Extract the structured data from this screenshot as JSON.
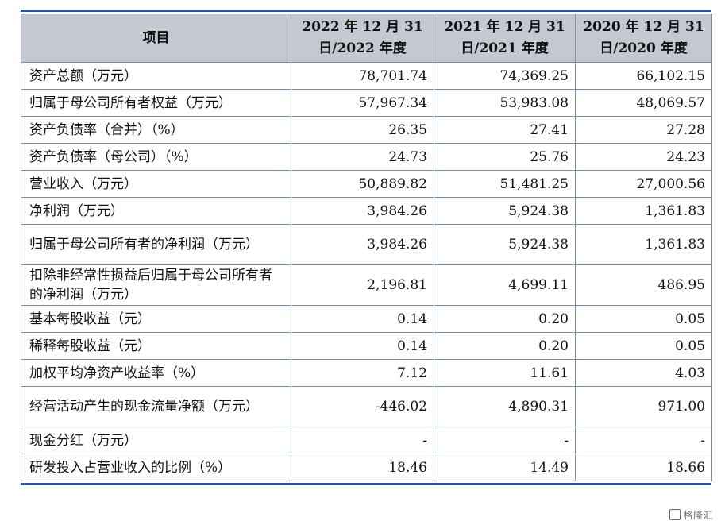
{
  "table": {
    "headers": [
      "项目",
      "2022 年 12 月 31 日/2022 年度",
      "2021 年 12 月 31 日/2021 年度",
      "2020 年 12 月 31 日/2020 年度"
    ],
    "rows": [
      {
        "label": "资产总额（万元）",
        "v2022": "78,701.74",
        "v2021": "74,369.25",
        "v2020": "66,102.15"
      },
      {
        "label": "归属于母公司所有者权益（万元）",
        "v2022": "57,967.34",
        "v2021": "53,983.08",
        "v2020": "48,069.57"
      },
      {
        "label": "资产负债率（合并）（%）",
        "v2022": "26.35",
        "v2021": "27.41",
        "v2020": "27.28"
      },
      {
        "label": "资产负债率（母公司）（%）",
        "v2022": "24.73",
        "v2021": "25.76",
        "v2020": "24.23"
      },
      {
        "label": "营业收入（万元）",
        "v2022": "50,889.82",
        "v2021": "51,481.25",
        "v2020": "27,000.56"
      },
      {
        "label": "净利润（万元）",
        "v2022": "3,984.26",
        "v2021": "5,924.38",
        "v2020": "1,361.83"
      },
      {
        "label": "归属于母公司所有者的净利润（万元）",
        "v2022": "3,984.26",
        "v2021": "5,924.38",
        "v2020": "1,361.83"
      },
      {
        "label": "扣除非经常性损益后归属于母公司所有者的净利润（万元）",
        "v2022": "2,196.81",
        "v2021": "4,699.11",
        "v2020": "486.95"
      },
      {
        "label": "基本每股收益（元）",
        "v2022": "0.14",
        "v2021": "0.20",
        "v2020": "0.05"
      },
      {
        "label": "稀释每股收益（元）",
        "v2022": "0.14",
        "v2021": "0.20",
        "v2020": "0.05"
      },
      {
        "label": "加权平均净资产收益率（%）",
        "v2022": "7.12",
        "v2021": "11.61",
        "v2020": "4.03"
      },
      {
        "label": "经营活动产生的现金流量净额（万元）",
        "v2022": "-446.02",
        "v2021": "4,890.31",
        "v2020": "971.00"
      },
      {
        "label": "现金分红（万元）",
        "v2022": "-",
        "v2021": "-",
        "v2020": "-"
      },
      {
        "label": "研发投入占营业收入的比例（%）",
        "v2022": "18.46",
        "v2021": "14.49",
        "v2020": "18.66"
      }
    ]
  },
  "watermark": {
    "text": "格隆汇",
    "icon": "gelonghui-logo-icon"
  },
  "colors": {
    "header_bg": "#c4c8d0",
    "rule": "#2f4fa0",
    "grid": "#7a8aa8"
  }
}
